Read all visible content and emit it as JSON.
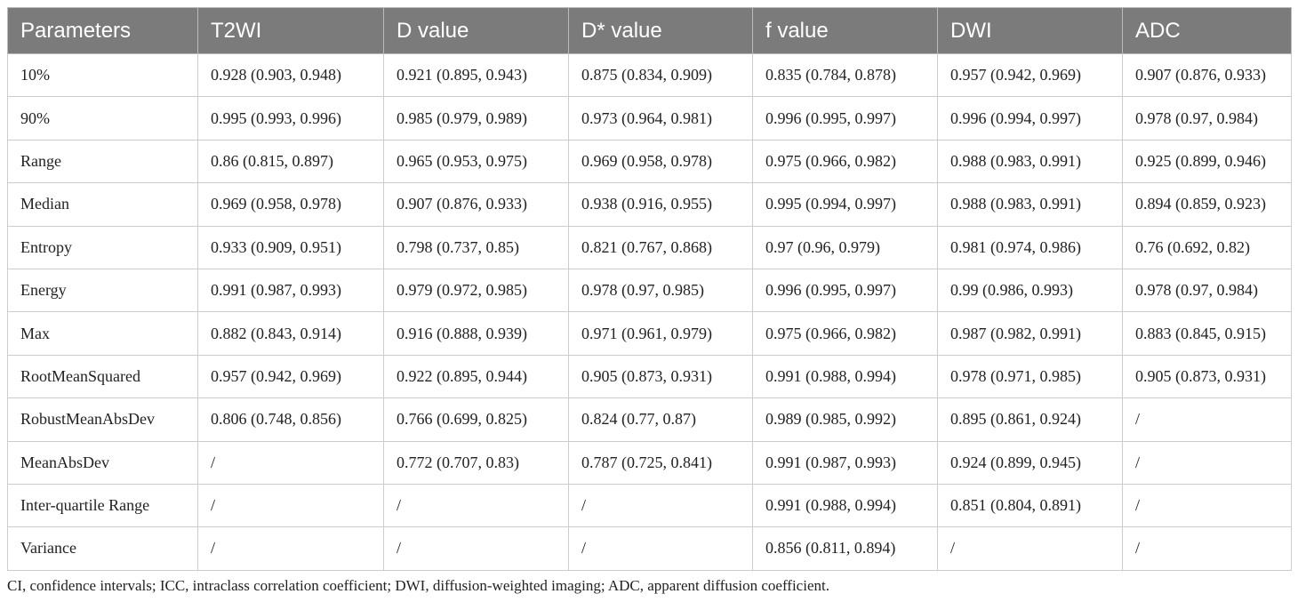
{
  "table": {
    "header": [
      "Parameters",
      "T2WI",
      "D value",
      "D* value",
      "f value",
      "DWI",
      "ADC"
    ],
    "rows": [
      [
        "10%",
        "0.928 (0.903, 0.948)",
        "0.921 (0.895, 0.943)",
        "0.875 (0.834, 0.909)",
        "0.835 (0.784, 0.878)",
        "0.957 (0.942, 0.969)",
        "0.907 (0.876, 0.933)"
      ],
      [
        "90%",
        "0.995 (0.993, 0.996)",
        "0.985 (0.979, 0.989)",
        "0.973 (0.964, 0.981)",
        "0.996 (0.995, 0.997)",
        "0.996 (0.994, 0.997)",
        "0.978 (0.97, 0.984)"
      ],
      [
        "Range",
        "0.86 (0.815, 0.897)",
        "0.965 (0.953, 0.975)",
        "0.969 (0.958, 0.978)",
        "0.975 (0.966, 0.982)",
        "0.988 (0.983, 0.991)",
        "0.925 (0.899, 0.946)"
      ],
      [
        "Median",
        "0.969 (0.958, 0.978)",
        "0.907 (0.876, 0.933)",
        "0.938 (0.916, 0.955)",
        "0.995 (0.994, 0.997)",
        "0.988 (0.983, 0.991)",
        "0.894 (0.859, 0.923)"
      ],
      [
        "Entropy",
        "0.933 (0.909, 0.951)",
        "0.798 (0.737, 0.85)",
        "0.821 (0.767, 0.868)",
        "0.97 (0.96, 0.979)",
        "0.981 (0.974, 0.986)",
        "0.76 (0.692, 0.82)"
      ],
      [
        "Energy",
        "0.991 (0.987, 0.993)",
        "0.979 (0.972, 0.985)",
        "0.978 (0.97, 0.985)",
        "0.996 (0.995, 0.997)",
        "0.99 (0.986, 0.993)",
        "0.978 (0.97, 0.984)"
      ],
      [
        "Max",
        "0.882 (0.843, 0.914)",
        "0.916 (0.888, 0.939)",
        "0.971 (0.961, 0.979)",
        "0.975 (0.966, 0.982)",
        "0.987 (0.982, 0.991)",
        "0.883 (0.845, 0.915)"
      ],
      [
        "RootMeanSquared",
        "0.957 (0.942, 0.969)",
        "0.922 (0.895, 0.944)",
        "0.905 (0.873, 0.931)",
        "0.991 (0.988, 0.994)",
        "0.978 (0.971, 0.985)",
        "0.905 (0.873, 0.931)"
      ],
      [
        "RobustMeanAbsDev",
        "0.806 (0.748, 0.856)",
        "0.766 (0.699, 0.825)",
        "0.824 (0.77, 0.87)",
        "0.989 (0.985, 0.992)",
        "0.895 (0.861, 0.924)",
        "/"
      ],
      [
        "MeanAbsDev",
        "/",
        "0.772 (0.707, 0.83)",
        "0.787 (0.725, 0.841)",
        "0.991 (0.987, 0.993)",
        "0.924 (0.899, 0.945)",
        "/"
      ],
      [
        "Inter-quartile Range",
        "/",
        "/",
        "/",
        "0.991 (0.988, 0.994)",
        "0.851 (0.804, 0.891)",
        "/"
      ],
      [
        "Variance",
        "/",
        "/",
        "/",
        "0.856 (0.811, 0.894)",
        "/",
        "/"
      ]
    ]
  },
  "footnote": "CI, confidence intervals; ICC, intraclass correlation coefficient; DWI, diffusion-weighted imaging; ADC, apparent diffusion coefficient."
}
